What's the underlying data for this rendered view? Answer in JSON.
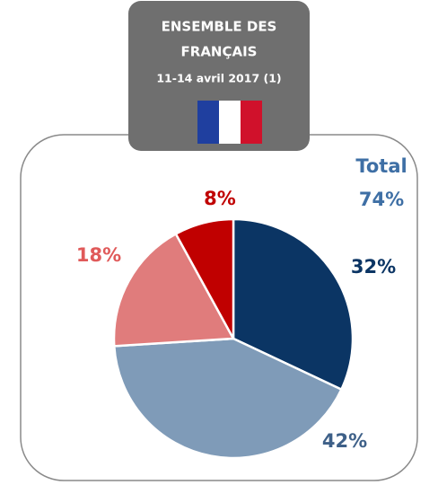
{
  "chart_data": {
    "type": "pie",
    "title": [
      "ENSEMBLE DES",
      "FRANÇAIS"
    ],
    "subtitle": "11-14 avril 2017 (1)",
    "annotation": [
      "Total",
      "74%"
    ],
    "annotation_color": "#3e6fa5",
    "values": [
      32,
      42,
      18,
      8
    ],
    "value_labels": [
      "32%",
      "42%",
      "18%",
      "8%"
    ],
    "colors": [
      "#0b3564",
      "#7f9bb8",
      "#e07c7c",
      "#c00000"
    ],
    "label_colors": [
      "#0b3564",
      "#3e6088",
      "#e05a5a",
      "#c00000"
    ]
  }
}
